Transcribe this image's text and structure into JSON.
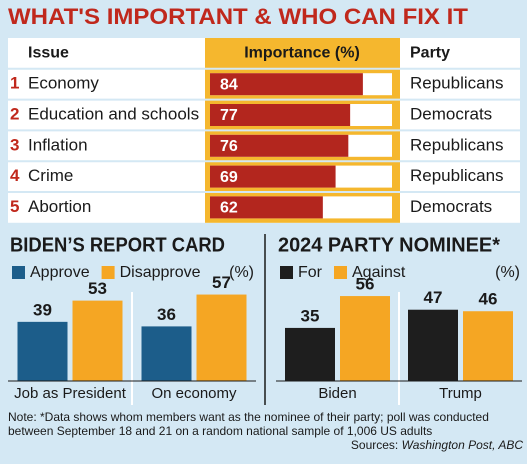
{
  "chart_data": [
    {
      "type": "table-bar",
      "title": "WHAT'S IMPORTANT & WHO CAN FIX IT",
      "headers": [
        "Issue",
        "Importance (%)",
        "Party"
      ],
      "ranks": [
        "1",
        "2",
        "3",
        "4",
        "5"
      ],
      "categories": [
        "Economy",
        "Education and schools",
        "Inflation",
        "Crime",
        "Abortion"
      ],
      "values": [
        84,
        77,
        76,
        69,
        62
      ],
      "parties": [
        "Republicans",
        "Democrats",
        "Republicans",
        "Republicans",
        "Democrats"
      ],
      "xlim": [
        0,
        100
      ],
      "color": "#b3261e"
    },
    {
      "type": "bar",
      "title": "BIDEN’S REPORT CARD",
      "unit_label": "(%)",
      "categories": [
        "Job as President",
        "On economy"
      ],
      "series": [
        {
          "name": "Approve",
          "color": "#1c5d8a",
          "values": [
            39,
            36
          ]
        },
        {
          "name": "Disapprove",
          "color": "#f5a623",
          "values": [
            53,
            57
          ]
        }
      ],
      "ylim": [
        0,
        60
      ]
    },
    {
      "type": "bar",
      "title": "2024 PARTY NOMINEE*",
      "unit_label": "(%)",
      "categories": [
        "Biden",
        "Trump"
      ],
      "series": [
        {
          "name": "For",
          "color": "#1e1e1e",
          "values": [
            35,
            47
          ]
        },
        {
          "name": "Against",
          "color": "#f5a623",
          "values": [
            56,
            46
          ]
        }
      ],
      "ylim": [
        0,
        60
      ]
    }
  ],
  "note": "Note: *Data shows whom members want as the nominee of their party;  poll was conducted between September 18 and 21 on a random national sample of 1,006 US adults",
  "source_prefix": "Sources:",
  "source": "Washington Post, ABC"
}
